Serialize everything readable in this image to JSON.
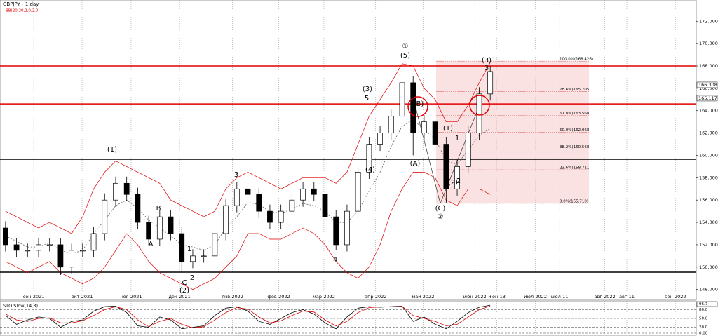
{
  "chart_data": {
    "type": "candlestick",
    "title": "GBPJPY - 1 day",
    "indicator_label": "BB(20,20,2,0,2,0)",
    "open": [
      153.5,
      152,
      151.5,
      151.5,
      152,
      152,
      150,
      151.5,
      151.5,
      153,
      156,
      157.5,
      156.5,
      154,
      152.5,
      154.5,
      153,
      150.5,
      151,
      151,
      153,
      155.5,
      157,
      156.5,
      155,
      154,
      155,
      156,
      157,
      156.5,
      154.5,
      152,
      155,
      158.5,
      161,
      162,
      163.5,
      166.5,
      162,
      163,
      161,
      157,
      159,
      162,
      165.5
    ],
    "high": [
      154.1,
      152.6,
      152.1,
      152.6,
      152.6,
      152.6,
      152.1,
      152.1,
      153.6,
      156.6,
      158.1,
      158.1,
      157.1,
      154.6,
      155.1,
      155.1,
      153.6,
      151.6,
      151.6,
      153.6,
      156.1,
      157.6,
      157.6,
      157.1,
      155.6,
      155.6,
      156.6,
      157.6,
      157.6,
      157.1,
      155.1,
      155.6,
      159.1,
      161.6,
      162.6,
      164.1,
      168.4,
      167.1,
      163.6,
      163.6,
      161.6,
      159.6,
      162.6,
      166.1,
      168.0
    ],
    "low": [
      151.4,
      150.9,
      150.9,
      150.9,
      151.4,
      149.3,
      149.4,
      150.9,
      150.9,
      152.4,
      155.4,
      155.9,
      153.4,
      151.9,
      151.9,
      152.4,
      149.5,
      149.9,
      150.4,
      150.4,
      152.4,
      154.9,
      155.9,
      154.4,
      153.4,
      153.4,
      154.4,
      155.4,
      155.9,
      153.9,
      151.5,
      151.4,
      154.4,
      157.9,
      160.4,
      161.4,
      162.9,
      160.0,
      161.4,
      160.4,
      155.7,
      156.4,
      158.4,
      161.4,
      164.9
    ],
    "close": [
      152,
      151.5,
      151.5,
      152,
      152,
      150,
      151.5,
      151.5,
      153,
      156,
      157.5,
      156.5,
      154,
      152.5,
      154.5,
      153,
      150.5,
      151,
      151,
      153,
      155.5,
      157,
      156.5,
      155,
      154,
      155,
      156,
      157,
      156.5,
      154.5,
      152,
      155,
      158.5,
      161,
      162,
      163.5,
      166.5,
      162,
      163,
      161,
      157,
      159,
      162,
      165.5,
      167.5
    ],
    "bb_upper": [
      155,
      154.5,
      154,
      153.5,
      154,
      153.5,
      153,
      154.5,
      157,
      158.5,
      159.5,
      159,
      158.5,
      158,
      157.5,
      156,
      155.5,
      155,
      154.5,
      155,
      157,
      158,
      158.5,
      158,
      157.5,
      157,
      157.5,
      158,
      158,
      158,
      157.5,
      158.5,
      161,
      163.5,
      165,
      166.5,
      168.2,
      168,
      166,
      165,
      163,
      163,
      164.5,
      166.5,
      168.3
    ],
    "bb_middle": [
      152.8,
      152.3,
      151.8,
      151.8,
      152.2,
      151.5,
      151.2,
      151.5,
      153,
      154.2,
      155.5,
      156,
      155.3,
      154.2,
      153.5,
      152.8,
      152,
      151.8,
      151.5,
      152,
      153.5,
      154.5,
      155.8,
      155.6,
      155,
      154.8,
      155.2,
      155.7,
      155.5,
      155,
      154,
      154,
      155,
      156.8,
      158.5,
      160.8,
      162.6,
      163.2,
      162.3,
      161.5,
      159.5,
      159.2,
      160.5,
      161.8,
      162.4
    ],
    "bb_lower": [
      150.5,
      150,
      149.5,
      150,
      150.5,
      149.5,
      149,
      148.5,
      149,
      150,
      151.5,
      153,
      152,
      150.5,
      149.5,
      149,
      148.5,
      148,
      148.5,
      149,
      150,
      151,
      153,
      153,
      152.5,
      152.5,
      153,
      153.5,
      153,
      152,
      150.5,
      149.5,
      149,
      150,
      152,
      155,
      157,
      158.5,
      158.5,
      158,
      156,
      155.5,
      157,
      157,
      156.5
    ],
    "levels": [
      {
        "value": 168.0,
        "color": "#e00000"
      },
      {
        "value": 164.6,
        "color": "#e00000"
      },
      {
        "value": 159.65,
        "color": "#000000"
      },
      {
        "value": 149.55,
        "color": "#000000"
      }
    ],
    "price_tags": [
      166.308,
      165.117
    ],
    "fib_levels": [
      {
        "value": 168.426,
        "label": "100.0%(168.426)"
      },
      {
        "value": 165.705,
        "label": "78.6%(165.705)"
      },
      {
        "value": 163.568,
        "label": "61.8%(163.568)"
      },
      {
        "value": 162.068,
        "label": "50.0%(162.068)"
      },
      {
        "value": 160.568,
        "label": "38.2%(160.568)"
      },
      {
        "value": 158.711,
        "label": "23.6%(158.711)"
      },
      {
        "value": 155.71,
        "label": "0.0%(155.710)"
      }
    ],
    "annotations": [
      "(1)",
      "B",
      "A",
      "1",
      "C",
      "2",
      "(2)",
      "3",
      "4",
      "(3)",
      "5",
      "(4)",
      "①",
      "(5)",
      "(B)",
      "(A)",
      "(1)",
      "1",
      "(2)",
      "2",
      "(C)",
      "②",
      "(3)",
      "3"
    ],
    "xlim": [
      0,
      63.2
    ],
    "xticks": [
      {
        "value": 3.06,
        "label": "сен-2021"
      },
      {
        "value": 7.45,
        "label": "окт-2021"
      },
      {
        "value": 11.9,
        "label": "ноя-2021"
      },
      {
        "value": 16.3,
        "label": "дек-2021"
      },
      {
        "value": 21.1,
        "label": "янв-2022"
      },
      {
        "value": 25.3,
        "label": "фев-2022"
      },
      {
        "value": 29.4,
        "label": "мар-2022"
      },
      {
        "value": 34.1,
        "label": "апр-2022"
      },
      {
        "value": 38.4,
        "label": "май-2022"
      },
      {
        "value": 43.1,
        "label": "июн-2022"
      },
      {
        "value": 45.1,
        "label": "июн-13"
      },
      {
        "value": 48.6,
        "label": "июл-2022"
      },
      {
        "value": 50.8,
        "label": "июл-11"
      },
      {
        "value": 54.9,
        "label": "авг-2022"
      },
      {
        "value": 56.9,
        "label": "авг-11"
      },
      {
        "value": 61.3,
        "label": "сен-2022"
      }
    ],
    "ylim": [
      147.1,
      173.9
    ],
    "yticks": [
      {
        "value": 148,
        "label": "148.000"
      },
      {
        "value": 150,
        "label": "150.000"
      },
      {
        "value": 152,
        "label": "152.000"
      },
      {
        "value": 154,
        "label": "154.000"
      },
      {
        "value": 156,
        "label": "156.000"
      },
      {
        "value": 158,
        "label": "158.000"
      },
      {
        "value": 160,
        "label": "160.000"
      },
      {
        "value": 162,
        "label": "162.000"
      },
      {
        "value": 164,
        "label": "164.000"
      },
      {
        "value": 166,
        "label": "166.000"
      },
      {
        "value": 168,
        "label": "168.000"
      },
      {
        "value": 170,
        "label": "170.000"
      },
      {
        "value": 172,
        "label": "172.000"
      }
    ],
    "stochastic": {
      "label": "STO Slow(14,3)",
      "k": [
        60,
        30,
        45,
        55,
        50,
        20,
        40,
        45,
        75,
        90,
        92,
        70,
        25,
        20,
        55,
        45,
        15,
        20,
        25,
        60,
        85,
        90,
        75,
        40,
        30,
        50,
        70,
        80,
        65,
        35,
        15,
        55,
        85,
        90,
        88,
        90,
        92,
        40,
        55,
        30,
        15,
        40,
        70,
        88,
        95
      ],
      "d": [
        65,
        45,
        40,
        50,
        52,
        35,
        35,
        42,
        60,
        80,
        90,
        80,
        45,
        22,
        40,
        50,
        30,
        18,
        22,
        45,
        70,
        87,
        82,
        55,
        35,
        42,
        60,
        75,
        72,
        45,
        25,
        40,
        70,
        87,
        89,
        89,
        91,
        60,
        50,
        40,
        25,
        30,
        55,
        80,
        92
      ],
      "current_label": "96.7",
      "ylim": [
        0,
        100
      ],
      "yticks": [
        {
          "value": 80,
          "label": "80.0"
        },
        {
          "value": 50,
          "label": "50.0"
        },
        {
          "value": 20,
          "label": "20.0"
        },
        {
          "value": 0,
          "label": "0.00"
        }
      ]
    }
  }
}
